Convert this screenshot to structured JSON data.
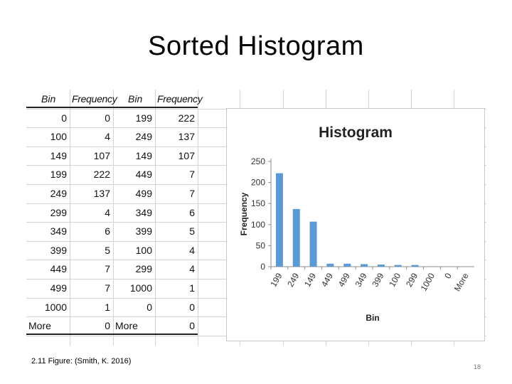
{
  "slide": {
    "title": "Sorted Histogram",
    "caption": "2.11 Figure: (Smith, K. 2016)",
    "page_number": "18"
  },
  "table": {
    "headers": [
      "Bin",
      "Frequency",
      "Bin",
      "Frequency"
    ],
    "rows": [
      [
        "0",
        "0",
        "199",
        "222"
      ],
      [
        "100",
        "4",
        "249",
        "137"
      ],
      [
        "149",
        "107",
        "149",
        "107"
      ],
      [
        "199",
        "222",
        "449",
        "7"
      ],
      [
        "249",
        "137",
        "499",
        "7"
      ],
      [
        "299",
        "4",
        "349",
        "6"
      ],
      [
        "349",
        "6",
        "399",
        "5"
      ],
      [
        "399",
        "5",
        "100",
        "4"
      ],
      [
        "449",
        "7",
        "299",
        "4"
      ],
      [
        "499",
        "7",
        "1000",
        "1"
      ],
      [
        "1000",
        "1",
        "0",
        "0"
      ],
      [
        "More",
        "0",
        "More",
        "0"
      ]
    ]
  },
  "chart_data": {
    "type": "bar",
    "title": "Histogram",
    "xlabel": "Bin",
    "ylabel": "Frequency",
    "categories": [
      "199",
      "249",
      "149",
      "449",
      "499",
      "349",
      "399",
      "100",
      "299",
      "1000",
      "0",
      "More"
    ],
    "values": [
      222,
      137,
      107,
      7,
      7,
      6,
      5,
      4,
      4,
      1,
      0,
      0
    ],
    "ylim": [
      0,
      250
    ],
    "yticks": [
      0,
      50,
      100,
      150,
      200,
      250
    ],
    "grid": false,
    "legend": "none",
    "bar_color": "#5b9bd5"
  }
}
